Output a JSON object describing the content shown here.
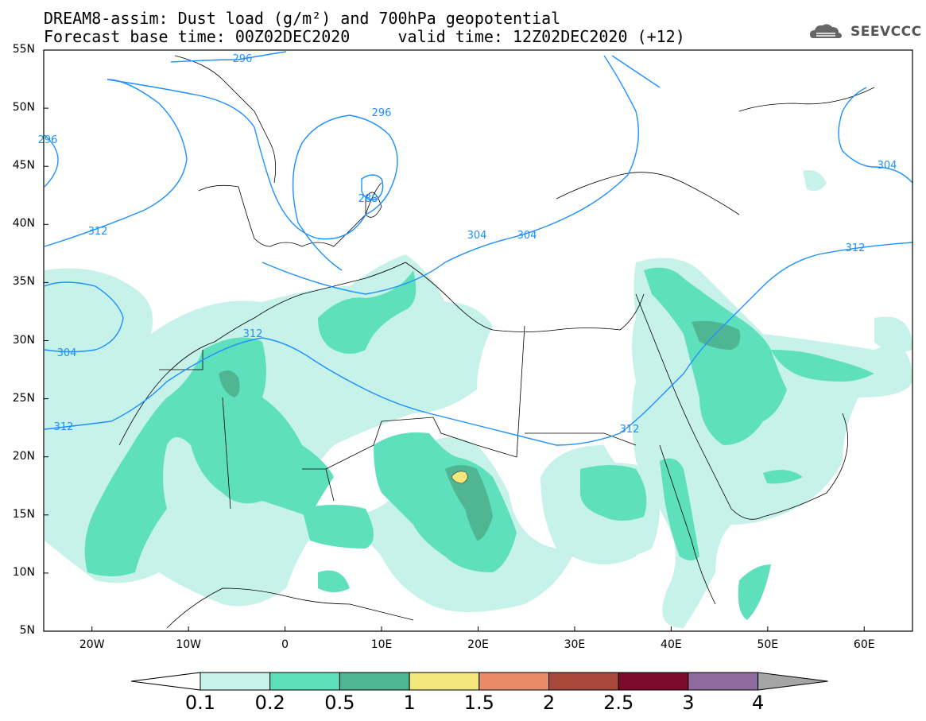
{
  "title": {
    "line1": "DREAM8-assim: Dust load (g/m²) and 700hPa geopotential",
    "line2": "Forecast base time: 00Z02DEC2020     valid time: 12Z02DEC2020 (+12)"
  },
  "logo": {
    "text": "SEEVCCC",
    "icon": "cloud-logo-icon"
  },
  "axes": {
    "lat_labels": [
      "55N",
      "50N",
      "45N",
      "40N",
      "35N",
      "30N",
      "25N",
      "20N",
      "15N",
      "10N",
      "5N"
    ],
    "lon_labels": [
      "20W",
      "10W",
      "0",
      "10E",
      "20E",
      "30E",
      "40E",
      "50E",
      "60E"
    ],
    "lat_range": [
      5,
      55
    ],
    "lon_range": [
      -25,
      65
    ]
  },
  "contour_labels": [
    "296",
    "296",
    "288",
    "312",
    "304",
    "312",
    "304",
    "312",
    "312",
    "312",
    "304",
    "296",
    "304"
  ],
  "colorbar": {
    "labels": [
      "0.1",
      "0.2",
      "0.5",
      "1",
      "1.5",
      "2",
      "2.5",
      "3",
      "4"
    ],
    "colors": [
      "#c6f2ea",
      "#5fe0bc",
      "#4fb592",
      "#f1e77a",
      "#ea8b68",
      "#a8473b",
      "#7c0a2c",
      "#8e6b9f",
      "#a5a5a5"
    ]
  }
}
